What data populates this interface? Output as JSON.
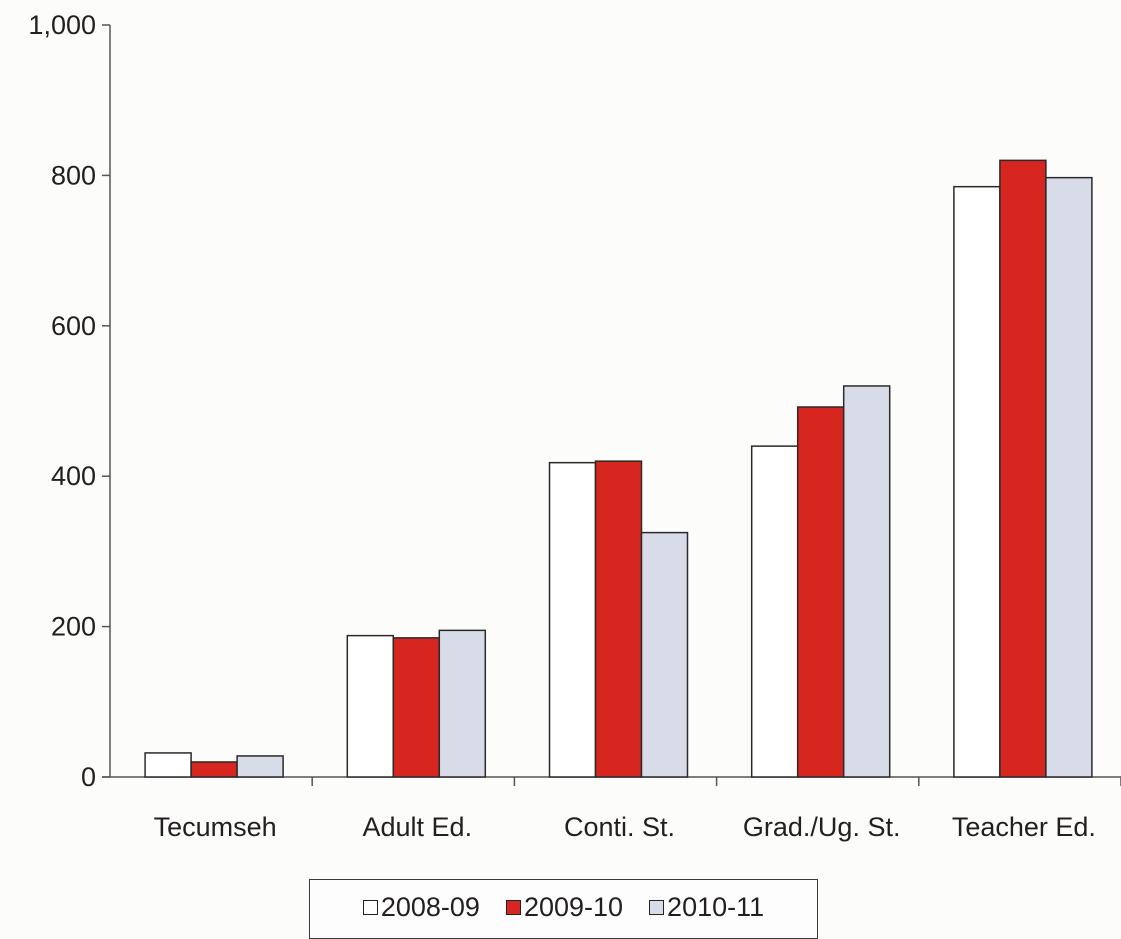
{
  "chart_data": {
    "type": "bar",
    "title": "",
    "xlabel": "",
    "ylabel": "",
    "categories": [
      "Tecumseh",
      "Adult Ed.",
      "Conti. St.",
      "Grad./Ug. St.",
      "Teacher Ed."
    ],
    "series": [
      {
        "name": "2008-09",
        "values": [
          32,
          188,
          418,
          440,
          785
        ],
        "color": "#ffffff"
      },
      {
        "name": "2009-10",
        "values": [
          20,
          185,
          420,
          492,
          820
        ],
        "color": "#d7261f"
      },
      {
        "name": "2010-11",
        "values": [
          28,
          195,
          325,
          520,
          797
        ],
        "color": "#d8dce8"
      }
    ],
    "ylim": [
      0,
      1000
    ],
    "yticks": [
      0,
      200,
      400,
      600,
      800,
      1000
    ],
    "ytick_labels": [
      "0",
      "200",
      "400",
      "600",
      "800",
      "1,000"
    ],
    "grid": false,
    "legend_position": "bottom-center"
  }
}
